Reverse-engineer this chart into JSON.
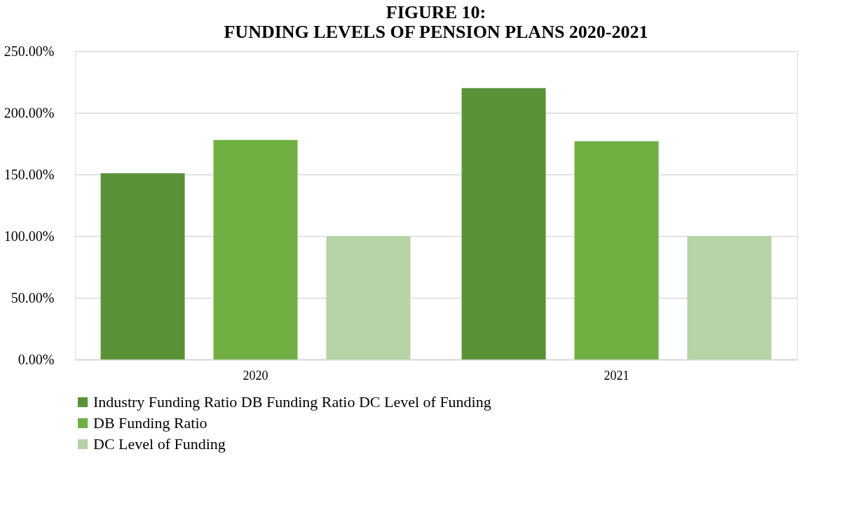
{
  "chart_data": {
    "type": "bar",
    "title": "FIGURE 10:\nFUNDING LEVELS OF PENSION PLANS 2020-2021",
    "categories": [
      "2020",
      "2021"
    ],
    "series": [
      {
        "name": "Industry Funding Ratio DB Funding Ratio DC Level of Funding",
        "color": "#5a9238",
        "values": [
          151,
          220
        ]
      },
      {
        "name": "DB Funding Ratio",
        "color": "#70b043",
        "values": [
          178,
          177
        ]
      },
      {
        "name": "DC Level of Funding",
        "color": "#b5d3a5",
        "values": [
          100,
          100
        ]
      }
    ],
    "ylim": [
      0,
      250
    ],
    "yticks": [
      {
        "value": 0,
        "label": "0.00%"
      },
      {
        "value": 50,
        "label": "50.00%"
      },
      {
        "value": 100,
        "label": "100.00%"
      },
      {
        "value": 150,
        "label": "150.00%"
      },
      {
        "value": 200,
        "label": "200.00%"
      },
      {
        "value": 250,
        "label": "250.00%"
      }
    ],
    "grid": "y",
    "legend": "bottom"
  }
}
